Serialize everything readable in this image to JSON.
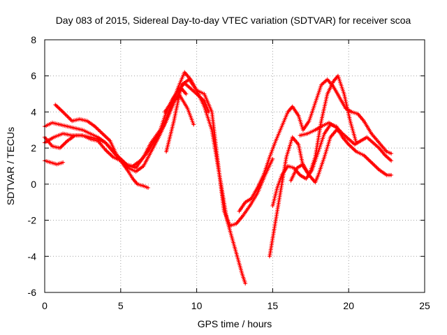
{
  "chart_data": {
    "type": "scatter",
    "title": "Day 083 of 2015, Sidereal Day-to-day VTEC variation (SDTVAR) for receiver scoa",
    "xlabel": "GPS time / hours",
    "ylabel": "SDTVAR / TECUs",
    "xlim": [
      0,
      25
    ],
    "ylim": [
      -6,
      8
    ],
    "xticks": [
      0,
      5,
      10,
      15,
      20,
      25
    ],
    "yticks": [
      -6,
      -4,
      -2,
      0,
      2,
      4,
      6,
      8
    ],
    "grid": true,
    "legend": "none",
    "marker": "plus",
    "series_color": "#ff0000",
    "series": [
      {
        "x": [
          0.0,
          0.6,
          1.2,
          1.8,
          2.4,
          3.0,
          3.5,
          4.0,
          4.5,
          5.0,
          5.5,
          6.0,
          6.5,
          7.0,
          7.6,
          8.0,
          8.4,
          8.8,
          9.2,
          9.6,
          10.0,
          10.5,
          10.8
        ],
        "y": [
          2.3,
          2.6,
          2.8,
          2.7,
          2.7,
          2.6,
          2.5,
          2.3,
          1.8,
          1.4,
          1.0,
          0.9,
          1.5,
          2.3,
          3.0,
          4.0,
          4.7,
          5.2,
          5.6,
          5.3,
          5.0,
          4.6,
          4.0
        ]
      },
      {
        "x": [
          0.0,
          0.5,
          1.0,
          1.5,
          2.0,
          2.5,
          3.0,
          3.5,
          4.0,
          4.5,
          5.0,
          5.5,
          6.0,
          6.5,
          7.0,
          7.5,
          8.0,
          8.5,
          9.0,
          9.3
        ],
        "y": [
          3.2,
          3.4,
          3.3,
          3.2,
          3.1,
          3.0,
          2.8,
          2.6,
          2.3,
          1.8,
          1.3,
          0.9,
          0.7,
          1.0,
          1.8,
          2.6,
          3.5,
          4.5,
          5.3,
          5.0
        ]
      },
      {
        "x": [
          0.0,
          0.5,
          1.0,
          1.5,
          2.0,
          2.5,
          3.0,
          3.5,
          4.0,
          4.5,
          5.0,
          5.5,
          5.8,
          6.1,
          6.5,
          6.8
        ],
        "y": [
          2.6,
          2.1,
          2.0,
          2.4,
          2.7,
          2.7,
          2.5,
          2.4,
          1.9,
          1.5,
          1.3,
          0.7,
          0.3,
          0.0,
          -0.1,
          -0.2
        ]
      },
      {
        "x": [
          0.0,
          0.4,
          0.8,
          1.2
        ],
        "y": [
          1.3,
          1.2,
          1.1,
          1.2
        ]
      },
      {
        "x": [
          0.7,
          1.2,
          1.8,
          2.3,
          2.8,
          3.3,
          3.8,
          4.3,
          4.8,
          5.3,
          5.8,
          6.3,
          6.8,
          7.3,
          7.8,
          8.3,
          8.8,
          9.2,
          9.6,
          10.0,
          10.5,
          11.0,
          11.5,
          11.8,
          12.2,
          12.6,
          13.0,
          13.5,
          14.0,
          14.5,
          15.0
        ],
        "y": [
          4.4,
          4.0,
          3.5,
          3.6,
          3.5,
          3.2,
          2.8,
          2.4,
          1.5,
          1.1,
          1.0,
          1.3,
          1.8,
          2.5,
          3.2,
          4.3,
          5.4,
          6.2,
          5.8,
          5.2,
          5.0,
          4.0,
          0.5,
          -1.5,
          -2.3,
          -2.2,
          -1.8,
          -1.2,
          -0.5,
          0.5,
          1.4
        ]
      },
      {
        "x": [
          8.0,
          8.5,
          9.0,
          9.5,
          10.0,
          10.5,
          11.0,
          11.5,
          12.0,
          12.5,
          13.0,
          13.2
        ],
        "y": [
          1.8,
          3.5,
          5.5,
          5.8,
          5.2,
          4.3,
          3.0,
          0.5,
          -2.0,
          -3.5,
          -5.0,
          -5.5
        ]
      },
      {
        "x": [
          7.9,
          8.4,
          8.9,
          9.4,
          9.8
        ],
        "y": [
          4.0,
          4.6,
          4.9,
          4.2,
          3.3
        ]
      },
      {
        "x": [
          12.8,
          13.2,
          13.6,
          14.0,
          14.4,
          14.8,
          15.2,
          15.6,
          16.0,
          16.3,
          16.7,
          17.0,
          17.4,
          17.8,
          18.2,
          18.6,
          19.0,
          19.4,
          19.8,
          20.2,
          20.6,
          21.0,
          21.5,
          22.0,
          22.5,
          22.8
        ],
        "y": [
          -1.5,
          -1.0,
          -0.8,
          -0.2,
          0.5,
          1.5,
          2.4,
          3.2,
          4.0,
          4.3,
          3.8,
          3.0,
          3.5,
          4.5,
          5.5,
          5.8,
          5.4,
          4.8,
          4.2,
          4.0,
          3.9,
          3.5,
          2.8,
          2.3,
          1.8,
          1.7
        ]
      },
      {
        "x": [
          14.8,
          15.1,
          15.5,
          15.9,
          16.3,
          16.7,
          17.0,
          17.4,
          17.8,
          18.2,
          18.6,
          19.0,
          19.3,
          19.7,
          20.1,
          20.5
        ],
        "y": [
          -4.0,
          -2.5,
          -0.5,
          1.5,
          2.6,
          2.2,
          1.0,
          0.5,
          1.5,
          3.5,
          5.0,
          5.7,
          6.0,
          5.0,
          3.5,
          2.3
        ]
      },
      {
        "x": [
          15.0,
          15.3,
          15.6,
          16.0,
          16.4,
          16.8,
          17.2,
          17.6,
          18.0,
          18.4,
          18.8,
          19.2,
          19.6,
          20.0,
          20.5,
          21.0,
          21.5,
          22.0,
          22.5,
          22.8
        ],
        "y": [
          -1.2,
          -0.2,
          0.5,
          1.0,
          0.9,
          0.5,
          0.3,
          0.8,
          1.8,
          2.8,
          3.3,
          3.2,
          2.6,
          2.2,
          1.8,
          1.6,
          1.2,
          0.8,
          0.5,
          0.5
        ]
      },
      {
        "x": [
          16.2,
          16.6,
          17.0,
          17.4,
          17.8,
          18.0,
          18.4,
          18.8,
          19.2,
          19.6,
          20.0,
          20.4,
          20.8,
          21.2,
          21.6,
          22.0,
          22.4,
          22.8
        ],
        "y": [
          0.2,
          0.9,
          1.1,
          0.5,
          0.1,
          0.5,
          1.5,
          2.6,
          3.0,
          2.8,
          2.5,
          2.2,
          2.4,
          2.6,
          2.3,
          2.0,
          1.6,
          1.3
        ]
      },
      {
        "x": [
          16.8,
          17.3,
          17.8,
          18.2,
          18.7,
          19.1,
          19.5
        ],
        "y": [
          2.7,
          2.8,
          3.0,
          3.2,
          3.4,
          3.2,
          2.9
        ]
      }
    ]
  }
}
